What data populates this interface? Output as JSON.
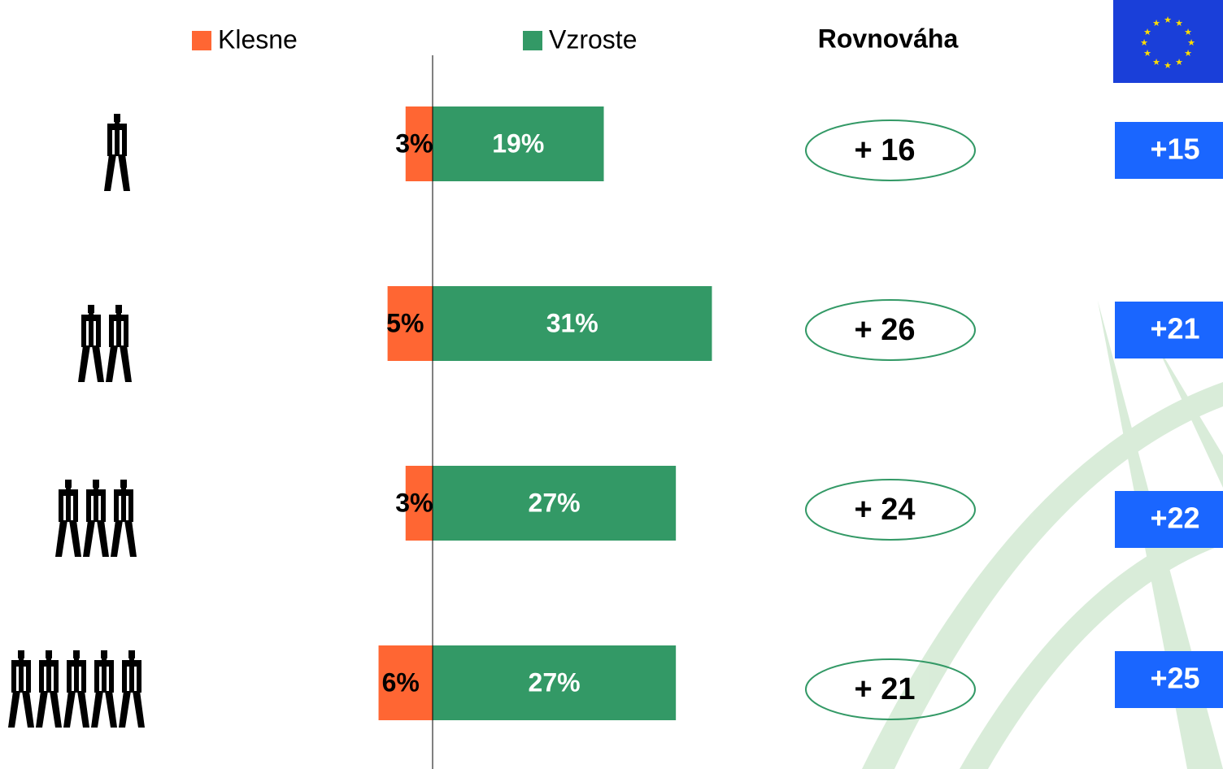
{
  "chart_data": {
    "type": "diverging_bar",
    "categories": [
      null,
      null,
      null,
      null
    ],
    "series": [
      {
        "name": "Klesne",
        "color": "#ff6633",
        "values": [
          3,
          5,
          3,
          6
        ],
        "value_labels": [
          "3%",
          "5%",
          "3%",
          "6%"
        ]
      },
      {
        "name": "Vzroste",
        "color": "#339966",
        "values": [
          19,
          31,
          27,
          27
        ],
        "value_labels": [
          "19%",
          "31%",
          "27%",
          "27%"
        ]
      }
    ],
    "balance": {
      "title": "Rovnováha",
      "values": [
        16,
        26,
        24,
        21
      ],
      "value_labels": [
        "+ 16",
        "+ 26",
        "+ 24",
        "+ 21"
      ]
    },
    "eu": {
      "values": [
        15,
        21,
        22,
        25
      ],
      "value_labels": [
        "+15",
        "+21",
        "+22",
        "+25"
      ]
    }
  }
}
